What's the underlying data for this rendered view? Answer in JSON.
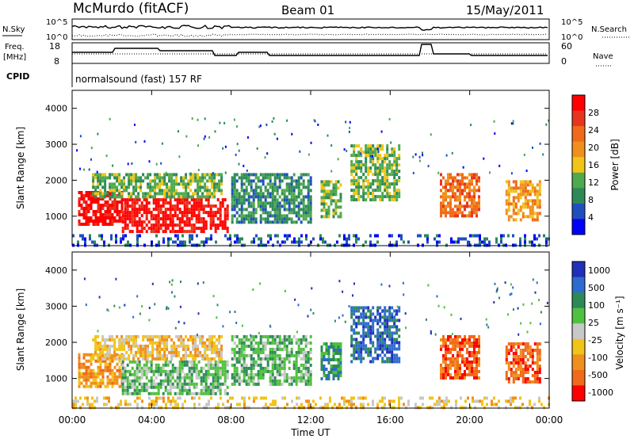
{
  "header": {
    "station": "McMurdo (fitACF)",
    "beam": "Beam 01",
    "date": "15/May/2011"
  },
  "panels": {
    "nsky_label": "N.Sky",
    "nsearch_label": "N.Search",
    "nsky_ticks": [
      "10^5",
      "10^0"
    ],
    "freq_label": "Freq.",
    "freq_unit": "[MHz]",
    "freq_ticks": [
      "18",
      "8"
    ],
    "nave_label": "Nave",
    "nave_ticks": [
      "60",
      "0"
    ],
    "cpid_label": "CPID",
    "cpid_text": "normalsound (fast) 157 RF"
  },
  "colors": {
    "power": [
      "#0000ff",
      "#1f4fbf",
      "#2d8a57",
      "#4fa94d",
      "#f0c419",
      "#f0901c",
      "#f06a1a",
      "#e8341c",
      "#ff0000"
    ],
    "velocity": [
      "#2030b8",
      "#2d6bd0",
      "#2d8a57",
      "#50c040",
      "#c8c8c8",
      "#f0c419",
      "#f0901c",
      "#f06a1a",
      "#ff0000"
    ]
  },
  "chart_data": [
    {
      "type": "heatmap",
      "name": "power",
      "xlabel": "Time UT",
      "ylabel": "Slant Range [km]",
      "xlim": [
        0,
        24
      ],
      "ylim": [
        180,
        4500
      ],
      "x_ticks": [
        "00:00",
        "04:00",
        "08:00",
        "12:00",
        "16:00",
        "20:00",
        "00:00"
      ],
      "y_ticks": [
        "1000",
        "2000",
        "3000",
        "4000"
      ],
      "colorbar_label": "Power [dB]",
      "colorbar_ticks": [
        "4",
        "8",
        "12",
        "16",
        "20",
        "24",
        "28"
      ],
      "regions": [
        {
          "t": [
            0.3,
            2.5
          ],
          "r": [
            800,
            1700
          ],
          "level": 8
        },
        {
          "t": [
            2.5,
            7.8
          ],
          "r": [
            600,
            1500
          ],
          "level": 8
        },
        {
          "t": [
            1.0,
            7.5
          ],
          "r": [
            1500,
            2200
          ],
          "level": 3
        },
        {
          "t": [
            8.0,
            12.0
          ],
          "r": [
            800,
            2200
          ],
          "level": 2
        },
        {
          "t": [
            12.5,
            13.5
          ],
          "r": [
            1000,
            2000
          ],
          "level": 3
        },
        {
          "t": [
            14.0,
            16.5
          ],
          "r": [
            1500,
            3000
          ],
          "level": 3
        },
        {
          "t": [
            18.5,
            20.5
          ],
          "r": [
            1000,
            2200
          ],
          "level": 6
        },
        {
          "t": [
            21.8,
            23.5
          ],
          "r": [
            900,
            2000
          ],
          "level": 5
        },
        {
          "t": [
            0.0,
            24.0
          ],
          "r": [
            180,
            500
          ],
          "level": 1
        }
      ]
    },
    {
      "type": "heatmap",
      "name": "velocity",
      "xlabel": "Time UT",
      "ylabel": "Slant Range [km]",
      "xlim": [
        0,
        24
      ],
      "ylim": [
        180,
        4500
      ],
      "x_ticks": [
        "00:00",
        "04:00",
        "08:00",
        "12:00",
        "16:00",
        "20:00",
        "00:00"
      ],
      "y_ticks": [
        "1000",
        "2000",
        "3000",
        "4000"
      ],
      "colorbar_label": "Velocity [m s⁻¹]",
      "colorbar_ticks": [
        "1000",
        "500",
        "100",
        "25",
        "-25",
        "-100",
        "-500",
        "-1000"
      ],
      "regions": [
        {
          "t": [
            0.3,
            2.5
          ],
          "r": [
            800,
            1700
          ],
          "level": 6
        },
        {
          "t": [
            2.5,
            7.8
          ],
          "r": [
            600,
            1500
          ],
          "level": 3
        },
        {
          "t": [
            1.0,
            7.5
          ],
          "r": [
            1500,
            2200
          ],
          "level": 5
        },
        {
          "t": [
            8.0,
            12.0
          ],
          "r": [
            800,
            2200
          ],
          "level": 3
        },
        {
          "t": [
            12.5,
            13.5
          ],
          "r": [
            1000,
            2000
          ],
          "level": 2
        },
        {
          "t": [
            14.0,
            16.5
          ],
          "r": [
            1500,
            3000
          ],
          "level": 1
        },
        {
          "t": [
            18.5,
            20.5
          ],
          "r": [
            1000,
            2200
          ],
          "level": 7
        },
        {
          "t": [
            21.8,
            23.5
          ],
          "r": [
            900,
            2000
          ],
          "level": 7
        },
        {
          "t": [
            0.0,
            24.0
          ],
          "r": [
            180,
            500
          ],
          "level": 5
        }
      ]
    }
  ]
}
